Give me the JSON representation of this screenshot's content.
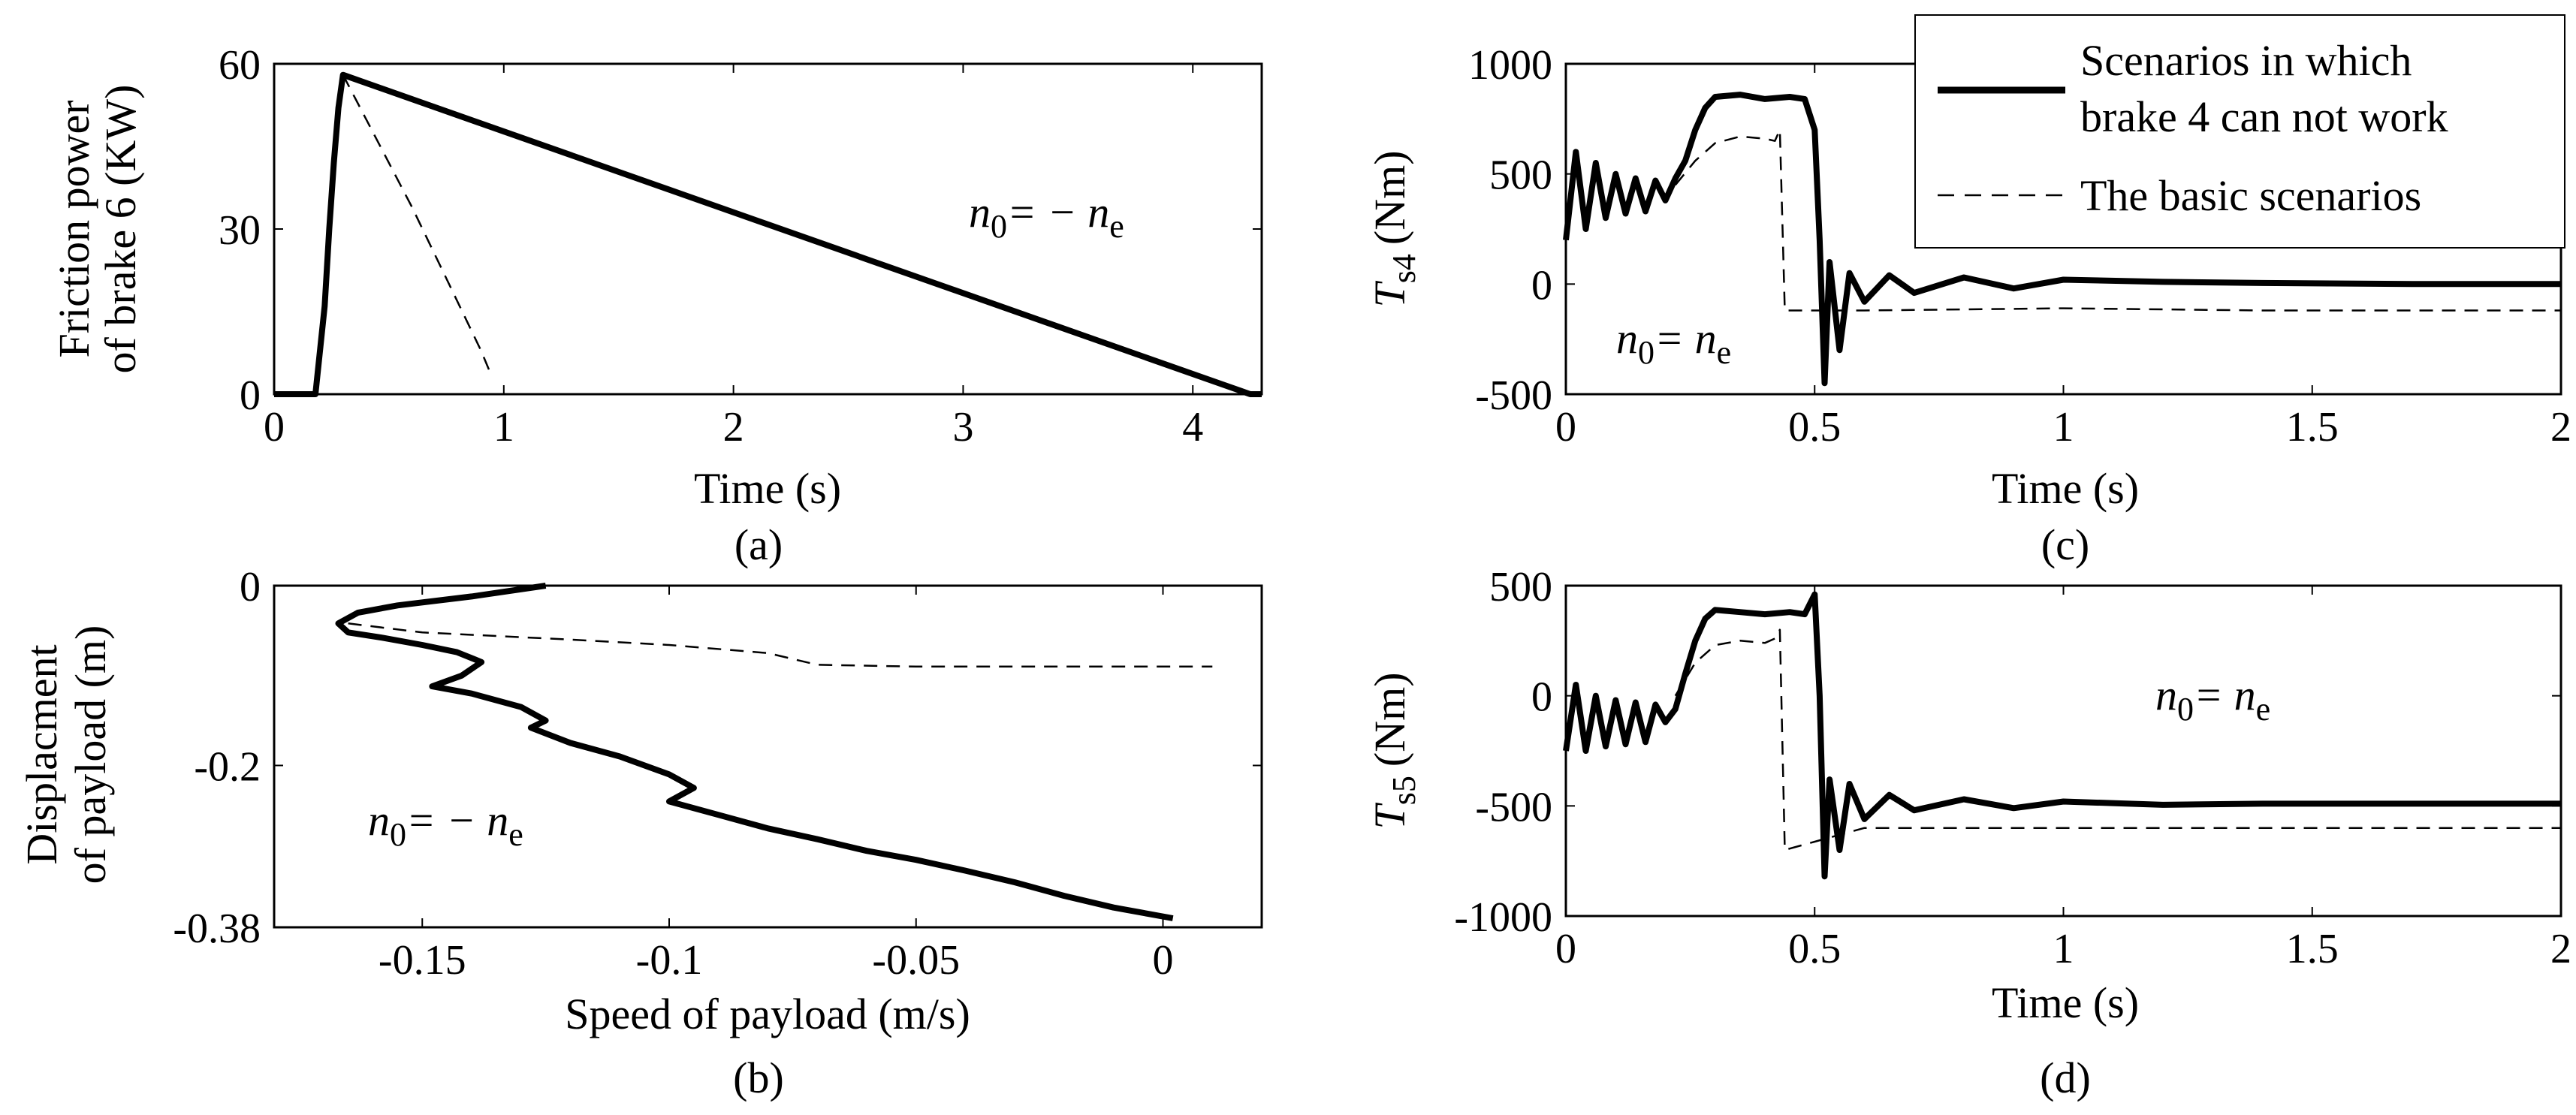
{
  "chart_data": [
    {
      "id": "a",
      "type": "line",
      "caption": "(a)",
      "xlabel": "Time (s)",
      "ylabel": [
        "Friction power",
        "of brake 6 (KW)"
      ],
      "xlim": [
        0,
        4.3
      ],
      "ylim": [
        0,
        60
      ],
      "xticks": [
        0,
        1,
        2,
        3,
        4
      ],
      "xtick_labels": [
        "0",
        "1",
        "2",
        "3",
        "4"
      ],
      "yticks": [
        0,
        30,
        60
      ],
      "ytick_labels": [
        "0",
        "30",
        "60"
      ],
      "annotation": {
        "text": "n",
        "sub1": "0",
        "eq": "= − n",
        "sub2": "e"
      },
      "series": [
        {
          "name": "Scenarios in which brake 4 can not work",
          "style": "solid",
          "x": [
            0,
            0.18,
            0.22,
            0.24,
            0.26,
            0.28,
            0.3,
            4.25,
            4.3
          ],
          "y": [
            0,
            0,
            16,
            30,
            42,
            52,
            58,
            0,
            0
          ]
        },
        {
          "name": "The basic scenarios",
          "style": "dashed",
          "x": [
            0.3,
            0.45,
            0.6,
            0.75,
            0.9,
            0.95
          ],
          "y": [
            58,
            46,
            34,
            21,
            8,
            3
          ]
        }
      ]
    },
    {
      "id": "b",
      "type": "line",
      "caption": "(b)",
      "xlabel": "Speed of payload (m/s)",
      "ylabel": [
        "Displacment",
        "of payload (m)"
      ],
      "xlim": [
        -0.18,
        0.02
      ],
      "ylim": [
        -0.38,
        0
      ],
      "xticks": [
        -0.15,
        -0.1,
        -0.05,
        0
      ],
      "xtick_labels": [
        "-0.15",
        "-0.1",
        "-0.05",
        "0"
      ],
      "yticks": [
        -0.38,
        -0.2,
        0
      ],
      "ytick_labels": [
        "-0.38",
        "-0.2",
        "0"
      ],
      "annotation": {
        "text": "n",
        "sub1": "0",
        "eq": "= − n",
        "sub2": "e"
      },
      "series": [
        {
          "name": "Scenarios in which brake 4 can not work",
          "style": "solid",
          "x": [
            -0.125,
            -0.14,
            -0.155,
            -0.163,
            -0.167,
            -0.165,
            -0.158,
            -0.15,
            -0.143,
            -0.138,
            -0.142,
            -0.148,
            -0.14,
            -0.13,
            -0.125,
            -0.128,
            -0.12,
            -0.11,
            -0.1,
            -0.095,
            -0.1,
            -0.09,
            -0.08,
            -0.07,
            -0.06,
            -0.05,
            -0.04,
            -0.03,
            -0.02,
            -0.01,
            0.002
          ],
          "y": [
            0,
            -0.012,
            -0.022,
            -0.03,
            -0.042,
            -0.052,
            -0.058,
            -0.066,
            -0.074,
            -0.085,
            -0.1,
            -0.112,
            -0.12,
            -0.135,
            -0.15,
            -0.158,
            -0.175,
            -0.19,
            -0.21,
            -0.225,
            -0.24,
            -0.255,
            -0.27,
            -0.282,
            -0.295,
            -0.305,
            -0.317,
            -0.33,
            -0.345,
            -0.358,
            -0.37
          ]
        },
        {
          "name": "The basic scenarios",
          "style": "dashed",
          "x": [
            -0.165,
            -0.15,
            -0.12,
            -0.1,
            -0.08,
            -0.07,
            -0.05,
            -0.02,
            0.01
          ],
          "y": [
            -0.042,
            -0.052,
            -0.06,
            -0.066,
            -0.075,
            -0.088,
            -0.09,
            -0.09,
            -0.09
          ]
        }
      ]
    },
    {
      "id": "c",
      "type": "line",
      "caption": "(c)",
      "xlabel": "Time (s)",
      "ylabel_main": "T",
      "ylabel_sub": "s4",
      "ylabel_unit": "(Nm)",
      "xlim": [
        0,
        2
      ],
      "ylim": [
        -500,
        1000
      ],
      "xticks": [
        0,
        0.5,
        1,
        1.5,
        2
      ],
      "xtick_labels": [
        "0",
        "0.5",
        "1",
        "1.5",
        "2"
      ],
      "yticks": [
        -500,
        0,
        500,
        1000
      ],
      "ytick_labels": [
        "-500",
        "0",
        "500",
        "1000"
      ],
      "annotation": {
        "text": "n",
        "sub1": "0",
        "eq": "= n",
        "sub2": "e"
      },
      "series": [
        {
          "name": "Scenarios in which brake 4 can not work",
          "style": "solid",
          "x": [
            0,
            0.02,
            0.04,
            0.06,
            0.08,
            0.1,
            0.12,
            0.14,
            0.16,
            0.18,
            0.2,
            0.22,
            0.24,
            0.26,
            0.28,
            0.3,
            0.35,
            0.4,
            0.45,
            0.48,
            0.5,
            0.51,
            0.52,
            0.53,
            0.55,
            0.57,
            0.6,
            0.65,
            0.7,
            0.8,
            0.9,
            1.0,
            1.2,
            1.4,
            1.7,
            2.0
          ],
          "y": [
            200,
            600,
            250,
            550,
            300,
            500,
            320,
            480,
            330,
            470,
            380,
            480,
            560,
            700,
            800,
            850,
            860,
            840,
            850,
            840,
            700,
            200,
            -450,
            100,
            -300,
            50,
            -80,
            40,
            -40,
            30,
            -20,
            20,
            10,
            5,
            0,
            0
          ]
        },
        {
          "name": "The basic scenarios",
          "style": "dashed",
          "x": [
            0.22,
            0.26,
            0.3,
            0.35,
            0.4,
            0.42,
            0.43,
            0.44,
            0.6,
            1.0,
            1.4,
            2.0
          ],
          "y": [
            450,
            560,
            640,
            670,
            660,
            650,
            700,
            -120,
            -120,
            -110,
            -120,
            -120
          ]
        }
      ]
    },
    {
      "id": "d",
      "type": "line",
      "caption": "(d)",
      "xlabel": "Time (s)",
      "ylabel_main": "T",
      "ylabel_sub": "s5",
      "ylabel_unit": "(Nm)",
      "xlim": [
        0,
        2
      ],
      "ylim": [
        -1000,
        500
      ],
      "xticks": [
        0,
        0.5,
        1,
        1.5,
        2
      ],
      "xtick_labels": [
        "0",
        "0.5",
        "1",
        "1.5",
        "2"
      ],
      "yticks": [
        -1000,
        -500,
        0,
        500
      ],
      "ytick_labels": [
        "-1000",
        "-500",
        "0",
        "500"
      ],
      "annotation": {
        "text": "n",
        "sub1": "0",
        "eq": "= n",
        "sub2": "e"
      },
      "series": [
        {
          "name": "Scenarios in which brake 4 can not work",
          "style": "solid",
          "x": [
            0,
            0.02,
            0.04,
            0.06,
            0.08,
            0.1,
            0.12,
            0.14,
            0.16,
            0.18,
            0.2,
            0.22,
            0.24,
            0.26,
            0.28,
            0.3,
            0.35,
            0.4,
            0.45,
            0.48,
            0.5,
            0.51,
            0.52,
            0.53,
            0.55,
            0.57,
            0.6,
            0.65,
            0.7,
            0.8,
            0.9,
            1.0,
            1.2,
            1.4,
            1.7,
            2.0
          ],
          "y": [
            -250,
            50,
            -250,
            0,
            -230,
            -20,
            -220,
            -30,
            -210,
            -40,
            -120,
            -60,
            100,
            250,
            350,
            390,
            380,
            370,
            380,
            370,
            460,
            0,
            -820,
            -380,
            -700,
            -400,
            -560,
            -450,
            -520,
            -470,
            -510,
            -480,
            -495,
            -490,
            -490,
            -490
          ]
        },
        {
          "name": "The basic scenarios",
          "style": "dashed",
          "x": [
            0.22,
            0.26,
            0.3,
            0.35,
            0.4,
            0.42,
            0.43,
            0.44,
            0.6,
            1.0,
            1.4,
            2.0
          ],
          "y": [
            0,
            150,
            230,
            250,
            240,
            260,
            300,
            -700,
            -600,
            -600,
            -600,
            -600
          ]
        }
      ]
    }
  ],
  "legend": [
    {
      "style": "solid",
      "lines": [
        "Scenarios in which",
        "brake 4 can not work"
      ]
    },
    {
      "style": "dashed",
      "lines": [
        "The basic scenarios"
      ]
    }
  ]
}
